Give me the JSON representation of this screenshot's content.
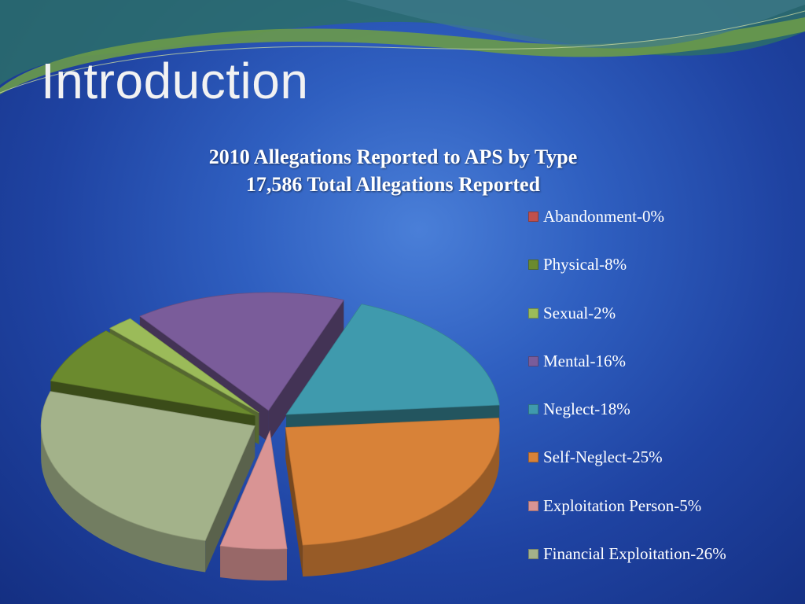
{
  "slide": {
    "title": "Introduction"
  },
  "chart_data": {
    "type": "pie",
    "style": "3d-exploded",
    "title": "2010 Allegations Reported to APS by Type",
    "subtitle": "17,586 Total Allegations Reported",
    "legend_position": "right",
    "slices": [
      {
        "label": "Abandonment-0%",
        "value": 0,
        "color": "#c0504d"
      },
      {
        "label": "Physical-8%",
        "value": 8,
        "color": "#6b8a2e"
      },
      {
        "label": "Sexual-2%",
        "value": 2,
        "color": "#9bbb59"
      },
      {
        "label": "Mental-16%",
        "value": 16,
        "color": "#7a5c9a"
      },
      {
        "label": "Neglect-18%",
        "value": 18,
        "color": "#3f9aad"
      },
      {
        "label": "Self-Neglect-25%",
        "value": 25,
        "color": "#d88238"
      },
      {
        "label": "Exploitation Person-5%",
        "value": 5,
        "color": "#d99494"
      },
      {
        "label": "Financial Exploitation-26%",
        "value": 26,
        "color": "#a3b28a"
      }
    ]
  }
}
